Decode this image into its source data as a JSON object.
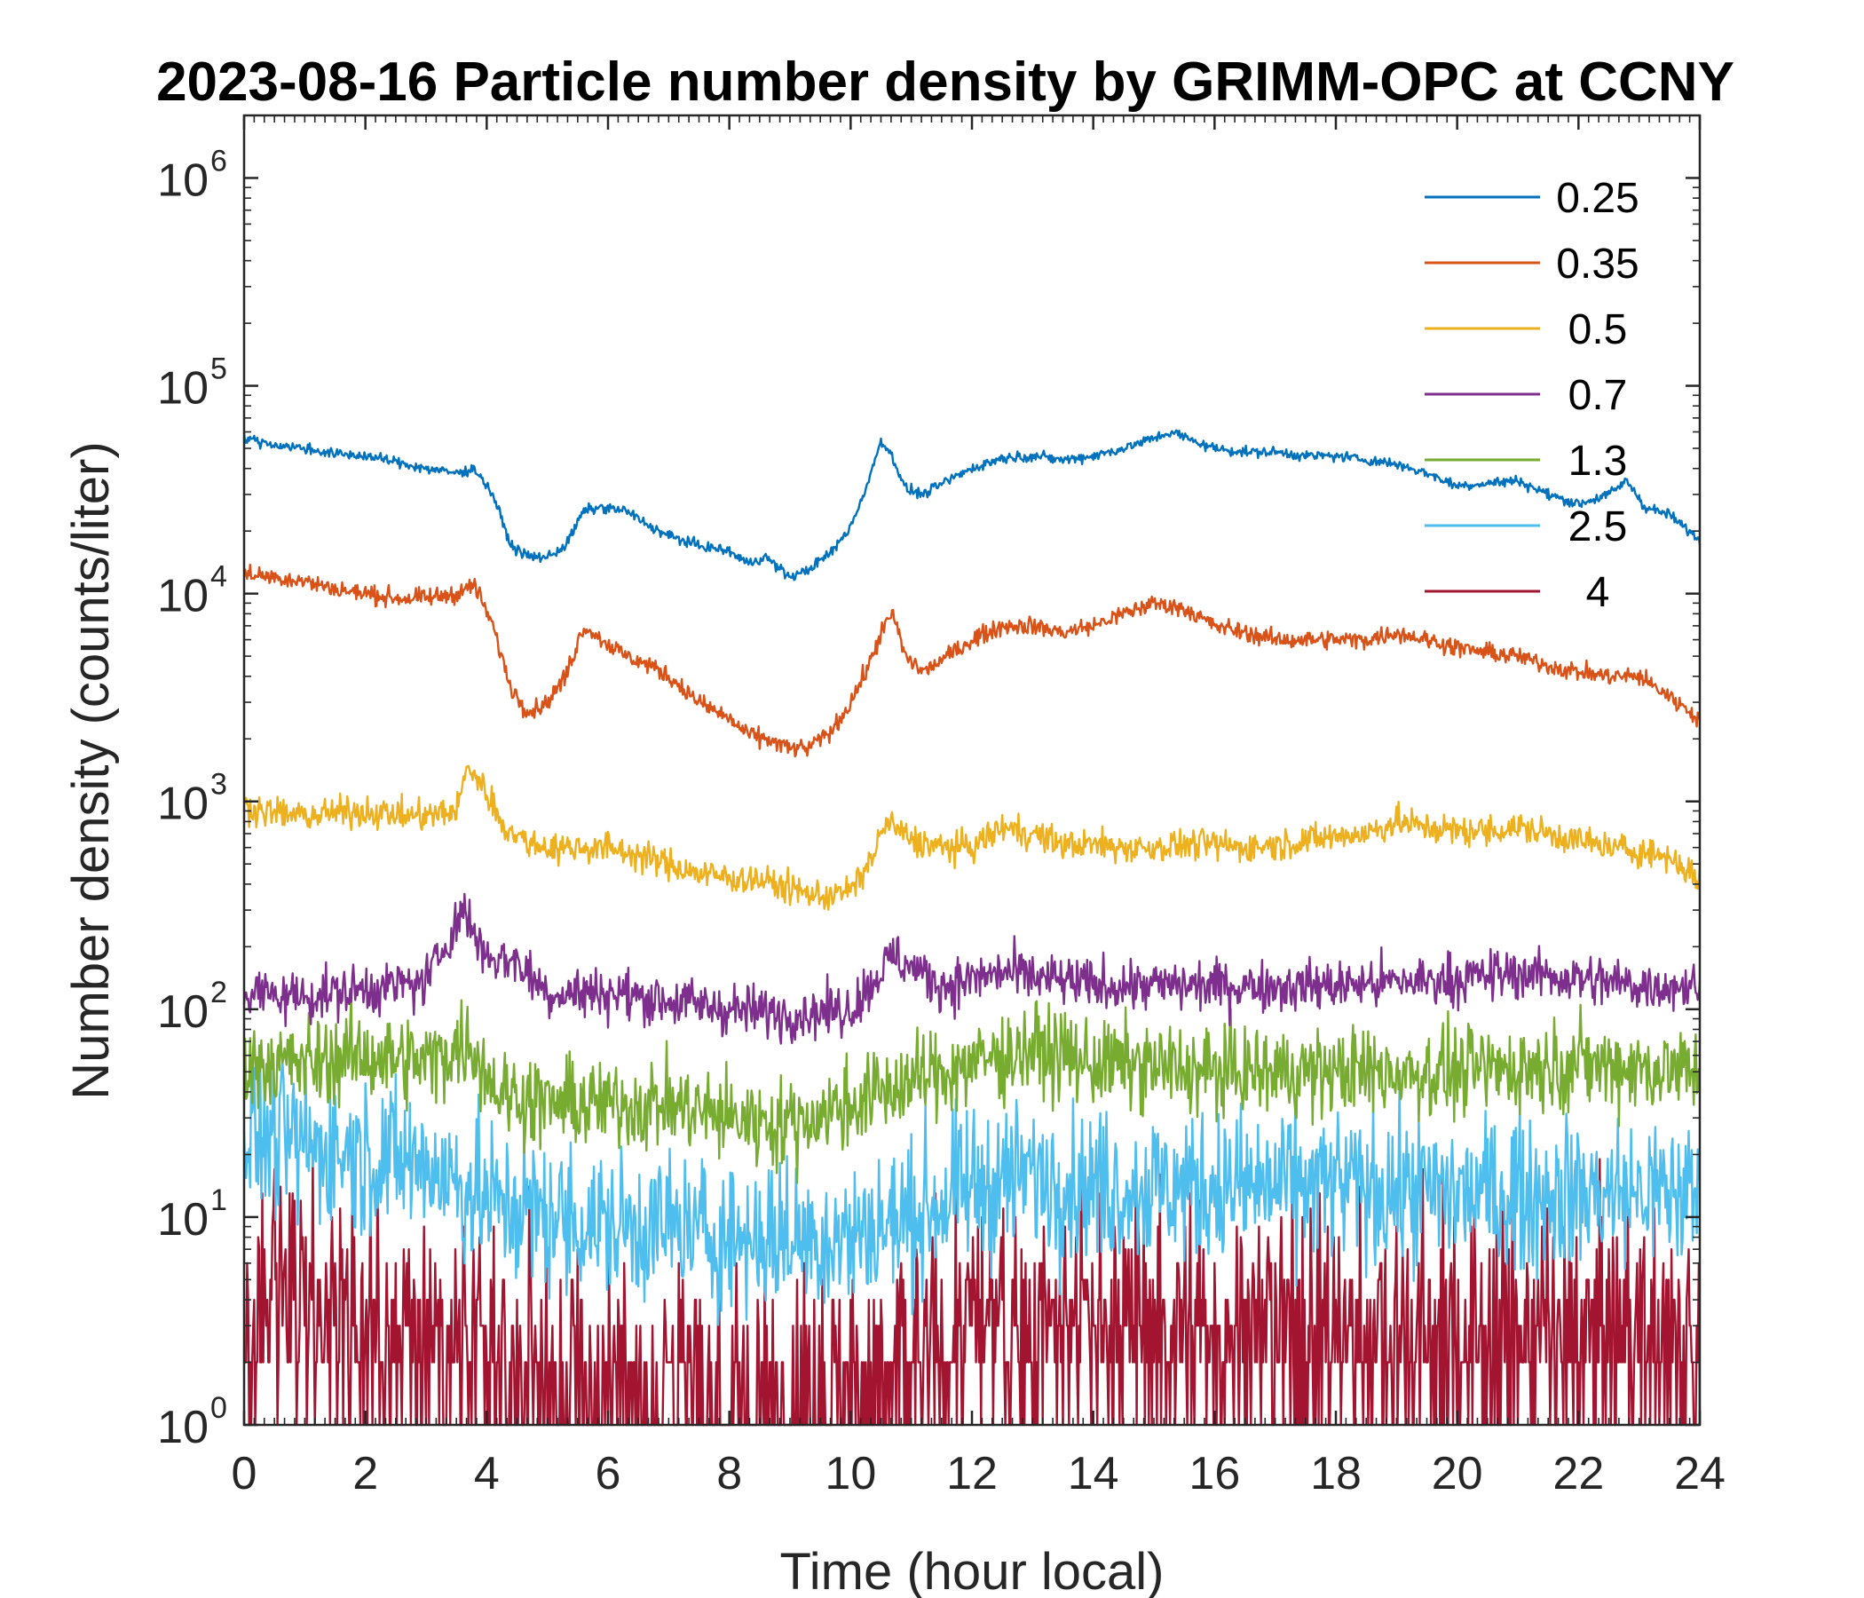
{
  "chart_data": {
    "type": "line",
    "title": "2023-08-16 Particle number density by GRIMM-OPC at CCNY",
    "xlabel": "Time (hour local)",
    "ylabel": "Number density (counts/liter)",
    "xlim": [
      0,
      24
    ],
    "ylim": [
      1,
      2000000
    ],
    "yscale": "log",
    "xticks": [
      "0",
      "2",
      "4",
      "6",
      "8",
      "10",
      "12",
      "14",
      "16",
      "18",
      "20",
      "22",
      "24"
    ],
    "yticks": [
      {
        "base": "10",
        "exp": "0"
      },
      {
        "base": "10",
        "exp": "1"
      },
      {
        "base": "10",
        "exp": "2"
      },
      {
        "base": "10",
        "exp": "3"
      },
      {
        "base": "10",
        "exp": "4"
      },
      {
        "base": "10",
        "exp": "5"
      },
      {
        "base": "10",
        "exp": "6"
      }
    ],
    "legend_position": "top-right",
    "series": [
      {
        "name": "0.25",
        "color": "#0072BD",
        "x": [
          0,
          0.5,
          1,
          1.5,
          2,
          2.5,
          3,
          3.5,
          3.8,
          4.1,
          4.4,
          4.7,
          5.0,
          5.3,
          5.6,
          5.9,
          6.3,
          6.7,
          7.0,
          7.5,
          8.0,
          8.3,
          8.6,
          9.0,
          9.3,
          9.7,
          10.0,
          10.3,
          10.5,
          10.7,
          10.9,
          11.2,
          11.6,
          12.0,
          12.5,
          13.0,
          13.5,
          14.0,
          14.5,
          15.0,
          15.3,
          15.6,
          16.0,
          16.5,
          17.0,
          17.5,
          18.0,
          18.5,
          19.0,
          19.5,
          20.0,
          20.5,
          21.0,
          21.5,
          22.0,
          22.5,
          22.8,
          23.1,
          23.5,
          24.0
        ],
        "values": [
          56000,
          52000,
          50000,
          47000,
          46000,
          43000,
          40000,
          38000,
          40000,
          30000,
          17000,
          15000,
          15000,
          17000,
          25000,
          26000,
          25000,
          21000,
          19000,
          17000,
          16000,
          14000,
          15000,
          12000,
          13000,
          16000,
          21000,
          35000,
          55000,
          45000,
          32000,
          30000,
          35000,
          40000,
          45000,
          46000,
          44000,
          46000,
          50000,
          56000,
          60000,
          55000,
          50000,
          48000,
          48000,
          46000,
          46000,
          44000,
          42000,
          38000,
          33000,
          34000,
          35000,
          30000,
          27000,
          30000,
          35000,
          26000,
          24000,
          18000
        ],
        "jitter": 0.04
      },
      {
        "name": "0.35",
        "color": "#D95319",
        "x": [
          0,
          0.5,
          1,
          1.5,
          2,
          2.5,
          3,
          3.5,
          3.8,
          4.1,
          4.4,
          4.7,
          5.0,
          5.3,
          5.6,
          5.9,
          6.3,
          6.7,
          7.0,
          7.5,
          8.0,
          8.3,
          8.6,
          9.0,
          9.3,
          9.7,
          10.0,
          10.3,
          10.5,
          10.7,
          10.9,
          11.2,
          11.6,
          12.0,
          12.5,
          13.0,
          13.5,
          14.0,
          14.5,
          15.0,
          15.5,
          16.0,
          16.5,
          17.0,
          17.5,
          18.0,
          18.5,
          19.0,
          19.5,
          20.0,
          20.5,
          21.0,
          21.5,
          22.0,
          22.5,
          23.0,
          23.5,
          24.0
        ],
        "values": [
          12500,
          12000,
          11500,
          10500,
          10000,
          9500,
          9500,
          10000,
          11000,
          7000,
          3500,
          2700,
          3000,
          4000,
          7000,
          6000,
          5000,
          4500,
          4000,
          3000,
          2500,
          2100,
          2000,
          1800,
          1800,
          2200,
          3000,
          4500,
          6500,
          8000,
          5000,
          4200,
          5000,
          6000,
          7000,
          7000,
          6500,
          7000,
          8000,
          9000,
          8500,
          7000,
          6500,
          6000,
          6000,
          6000,
          6000,
          6500,
          6000,
          5500,
          5200,
          5000,
          4500,
          4200,
          4000,
          4000,
          3200,
          2500
        ],
        "jitter": 0.07
      },
      {
        "name": "0.5",
        "color": "#EDB120",
        "x": [
          0,
          0.5,
          1,
          1.5,
          2,
          2.5,
          3,
          3.5,
          3.7,
          4.0,
          4.3,
          4.6,
          5.0,
          5.5,
          6.0,
          6.5,
          7.0,
          7.5,
          8.0,
          8.5,
          9.0,
          9.5,
          10.0,
          10.3,
          10.6,
          11.0,
          11.5,
          12.0,
          12.5,
          13.0,
          13.5,
          14.0,
          14.5,
          15.0,
          15.5,
          16.0,
          16.5,
          17.0,
          17.5,
          18.0,
          18.5,
          19.0,
          19.5,
          20.0,
          20.5,
          21.0,
          21.5,
          22.0,
          22.5,
          23.0,
          23.5,
          24.0
        ],
        "values": [
          950,
          880,
          850,
          880,
          900,
          860,
          850,
          900,
          1500,
          1100,
          750,
          650,
          600,
          600,
          600,
          550,
          500,
          450,
          430,
          420,
          380,
          350,
          370,
          500,
          800,
          650,
          600,
          600,
          750,
          700,
          620,
          620,
          600,
          600,
          620,
          620,
          600,
          620,
          650,
          680,
          700,
          800,
          750,
          720,
          720,
          750,
          700,
          650,
          600,
          580,
          540,
          420
        ],
        "jitter": 0.12
      },
      {
        "name": "0.7",
        "color": "#7E2F8E",
        "x": [
          0,
          1,
          2,
          3,
          3.6,
          4.0,
          4.5,
          5.0,
          6.0,
          7.0,
          8.0,
          9.0,
          10.0,
          10.7,
          11.5,
          12.5,
          14.0,
          16.0,
          18.0,
          20.0,
          21.0,
          22.0,
          23.0,
          24.0
        ],
        "values": [
          120,
          115,
          125,
          135,
          300,
          180,
          170,
          120,
          120,
          110,
          100,
          95,
          100,
          180,
          130,
          150,
          130,
          130,
          130,
          140,
          150,
          140,
          130,
          130
        ],
        "jitter": 0.2
      },
      {
        "name": "1.3",
        "color": "#77AC30",
        "x": [
          0,
          1,
          2,
          3,
          3.7,
          4.2,
          5,
          6,
          7,
          8,
          9,
          10,
          11,
          12,
          13,
          14,
          16,
          18,
          20,
          22,
          24
        ],
        "values": [
          55,
          55,
          60,
          55,
          70,
          40,
          35,
          35,
          35,
          30,
          28,
          35,
          45,
          55,
          65,
          55,
          50,
          50,
          50,
          55,
          50
        ],
        "jitter": 0.35
      },
      {
        "name": "2.5",
        "color": "#4DBEEE",
        "x": [
          0,
          1,
          2,
          3,
          4,
          5,
          6,
          7,
          8,
          9,
          10,
          11,
          12,
          13,
          14,
          16,
          18,
          20,
          22,
          24
        ],
        "values": [
          25,
          22,
          20,
          18,
          12,
          10,
          9,
          9,
          8,
          8,
          8,
          10,
          14,
          16,
          14,
          14,
          14,
          13,
          13,
          13
        ],
        "jitter": 0.6
      },
      {
        "name": "4",
        "color": "#A2142F",
        "x": [
          0,
          1,
          2,
          3,
          4,
          5,
          6,
          7,
          8,
          9,
          10,
          11,
          12,
          13,
          14,
          16,
          18,
          20,
          22,
          24
        ],
        "values": [
          3.5,
          3.5,
          3.5,
          2.8,
          1.8,
          1.5,
          1.4,
          1.4,
          1.3,
          1.3,
          1.5,
          1.8,
          3.0,
          3.0,
          2.8,
          2.8,
          2.8,
          2.5,
          2.5,
          2.5
        ],
        "jitter": 1.0
      }
    ]
  }
}
